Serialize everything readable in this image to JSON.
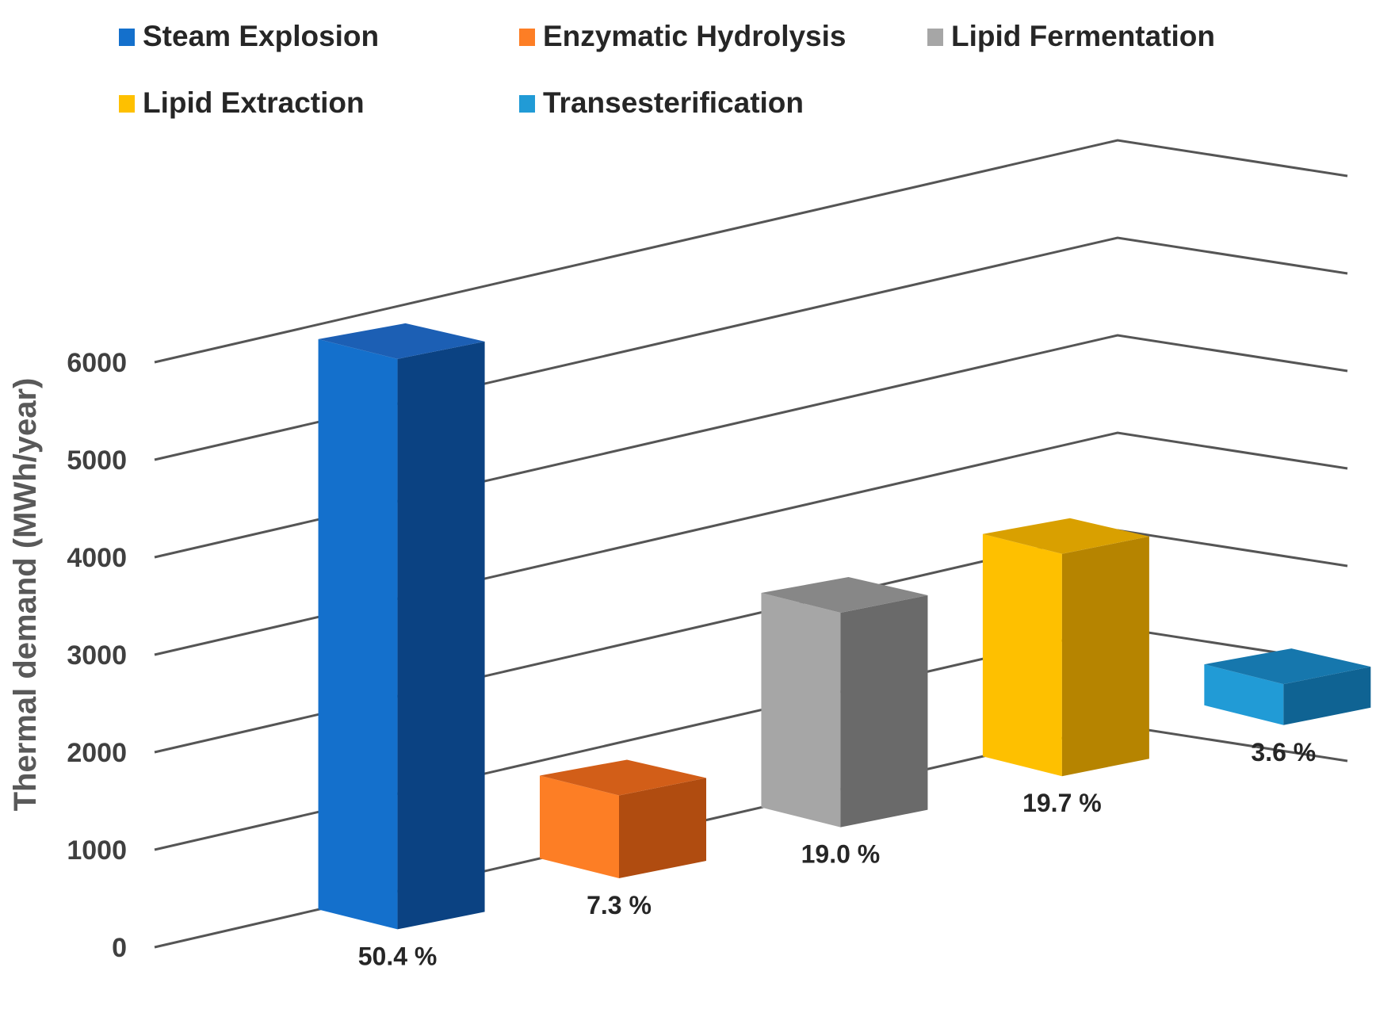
{
  "chart_data": {
    "type": "bar",
    "style": "3d-column",
    "title": "",
    "xlabel": "",
    "ylabel": "Thermal demand (MWh/year)",
    "ylim": [
      0,
      6000
    ],
    "y_ticks": [
      "0",
      "1000",
      "2000",
      "3000",
      "4000",
      "5000",
      "6000"
    ],
    "grid": true,
    "legend_position": "top",
    "categories": [
      "Steam Explosion",
      "Enzymatic Hydrolysis",
      "Lipid Fermentation",
      "Lipid Extraction",
      "Transesterification"
    ],
    "values": [
      5850,
      850,
      2200,
      2280,
      420
    ],
    "percent_labels": [
      "50.4 %",
      "7.3 %",
      "19.0 %",
      "19.7 %",
      "3.6 %"
    ],
    "colors": {
      "front": [
        "#1470cc",
        "#fd7e25",
        "#a6a6a6",
        "#fec000",
        "#219bd6"
      ],
      "side": [
        "#0b4282",
        "#b04c10",
        "#6a6a6a",
        "#b68400",
        "#0f6393"
      ],
      "top": [
        "#1c5fb4",
        "#d25e18",
        "#878787",
        "#d9a000",
        "#1677ad"
      ]
    }
  }
}
